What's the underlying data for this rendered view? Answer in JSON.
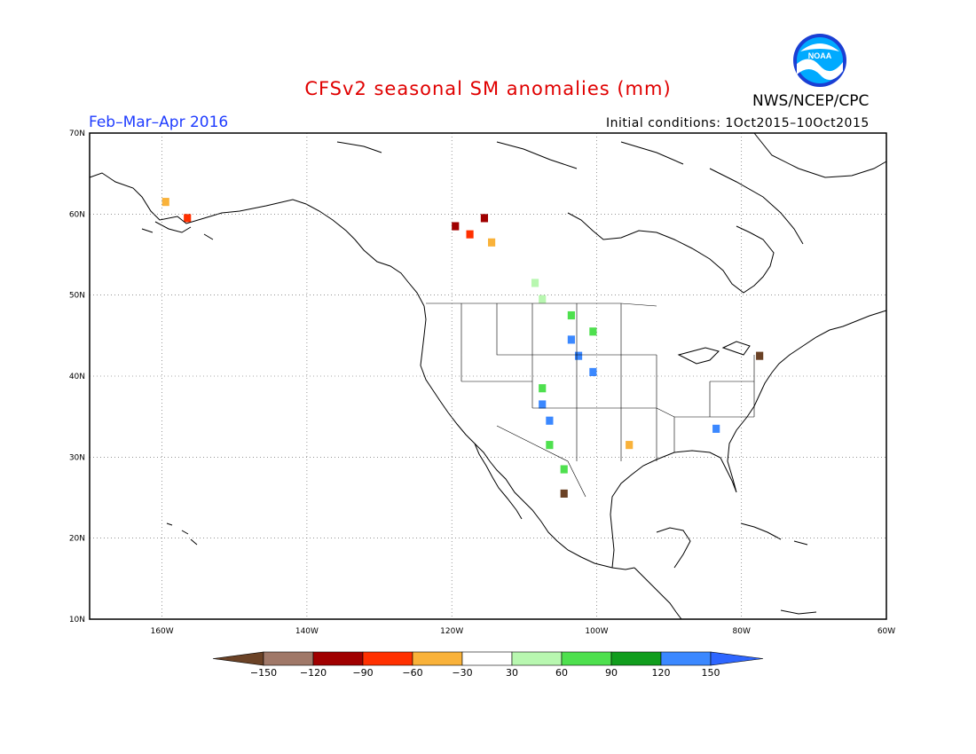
{
  "title": "CFSv2 seasonal SM anomalies (mm)",
  "agency": "NWS/NCEP/CPC",
  "logo_text": "NOAA",
  "period": "Feb–Mar–Apr 2016",
  "initial_conditions": "Initial conditions: 1Oct2015–10Oct2015",
  "map": {
    "lat_labels": [
      "70N",
      "60N",
      "50N",
      "40N",
      "30N",
      "20N",
      "10N"
    ],
    "lon_labels": [
      "160W",
      "140W",
      "120W",
      "100W",
      "80W",
      "60W"
    ],
    "lat_range": [
      10,
      70
    ],
    "lon_range": [
      -170,
      -60
    ]
  },
  "colorbar": {
    "ticks": [
      "-150",
      "-120",
      "-90",
      "-60",
      "-30",
      "30",
      "60",
      "90",
      "120",
      "150"
    ],
    "colors": [
      "#6b4226",
      "#a07868",
      "#a00000",
      "#ff3000",
      "#f9b23a",
      "#ffffff",
      "#b8f7b0",
      "#4ee04e",
      "#119d1d",
      "#3b88ff",
      "#2e66ff"
    ]
  },
  "anomaly_cells": [
    {
      "lat": 44,
      "lon": -104,
      "level": "wet-high"
    },
    {
      "lat": 42,
      "lon": -103,
      "level": "wet-high"
    },
    {
      "lat": 36,
      "lon": -108,
      "level": "wet-high"
    },
    {
      "lat": 34,
      "lon": -107,
      "level": "wet-high"
    },
    {
      "lat": 40,
      "lon": -101,
      "level": "wet-high"
    },
    {
      "lat": 33,
      "lon": -84,
      "level": "wet-high"
    },
    {
      "lat": 45,
      "lon": -101,
      "level": "wet-med"
    },
    {
      "lat": 47,
      "lon": -104,
      "level": "wet-med"
    },
    {
      "lat": 38,
      "lon": -108,
      "level": "wet-med"
    },
    {
      "lat": 31,
      "lon": -107,
      "level": "wet-med"
    },
    {
      "lat": 28,
      "lon": -105,
      "level": "wet-med"
    },
    {
      "lat": 49,
      "lon": -108,
      "level": "wet-low"
    },
    {
      "lat": 51,
      "lon": -109,
      "level": "wet-low"
    },
    {
      "lat": 58,
      "lon": -120,
      "level": "dry-high"
    },
    {
      "lat": 57,
      "lon": -118,
      "level": "dry-med"
    },
    {
      "lat": 59,
      "lon": -116,
      "level": "dry-high"
    },
    {
      "lat": 56,
      "lon": -115,
      "level": "dry-low"
    },
    {
      "lat": 61,
      "lon": -160,
      "level": "dry-low"
    },
    {
      "lat": 59,
      "lon": -157,
      "level": "dry-med"
    },
    {
      "lat": 25,
      "lon": -105,
      "level": "dry-ext"
    },
    {
      "lat": 42,
      "lon": -78,
      "level": "dry-ext"
    },
    {
      "lat": 31,
      "lon": -96,
      "level": "dry-low"
    }
  ]
}
